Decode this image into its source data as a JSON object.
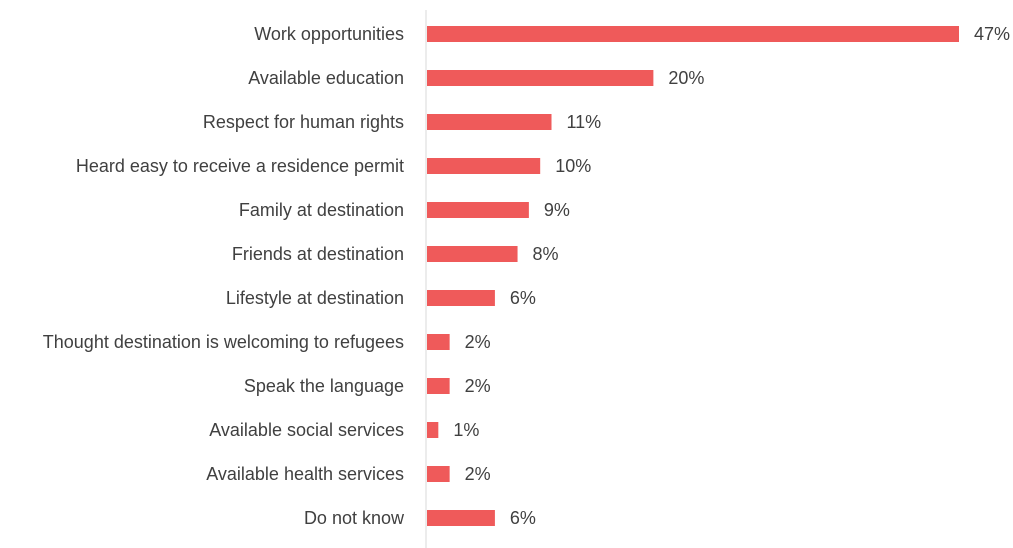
{
  "chart_data": {
    "type": "bar",
    "orientation": "horizontal",
    "categories": [
      "Work opportunities",
      "Available education",
      "Respect for human rights",
      "Heard easy to receive a residence permit",
      "Family at destination",
      "Friends at destination",
      "Lifestyle at destination",
      "Thought destination is welcoming to refugees",
      "Speak the language",
      "Available social services",
      "Available health services",
      "Do not know"
    ],
    "values": [
      47,
      20,
      11,
      10,
      9,
      8,
      6,
      2,
      2,
      1,
      2,
      6
    ],
    "value_labels": [
      "47%",
      "20%",
      "11%",
      "10%",
      "9%",
      "8%",
      "6%",
      "2%",
      "2%",
      "1%",
      "2%",
      "6%"
    ],
    "xlim": [
      0,
      47
    ],
    "grid": false,
    "colors": {
      "bar": "#ef5a5a",
      "axis": "#d9d9d9",
      "text": "#404040"
    }
  }
}
